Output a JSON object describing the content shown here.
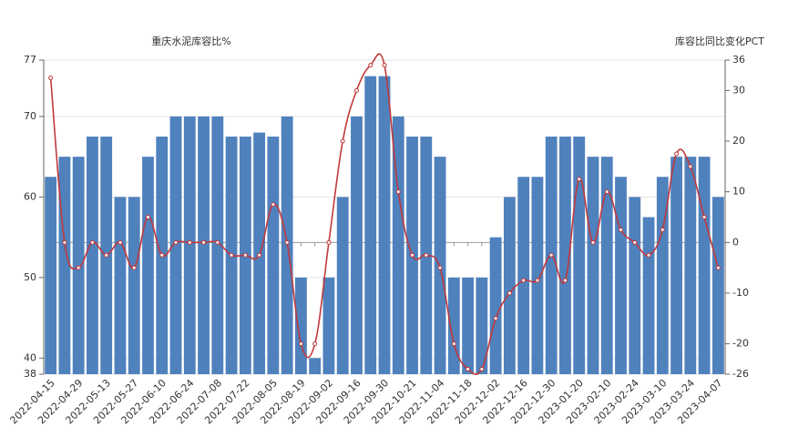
{
  "chart_data": {
    "type": "bar-line",
    "title_left": "重庆水泥库容比%",
    "title_right": "库容比同比变化PCT",
    "categories": [
      "2022-04-15",
      null,
      "2022-04-29",
      null,
      "2022-05-13",
      null,
      "2022-05-27",
      null,
      "2022-06-10",
      null,
      "2022-06-24",
      null,
      "2022-07-08",
      null,
      "2022-07-22",
      null,
      "2022-08-05",
      null,
      "2022-08-19",
      null,
      "2022-09-02",
      null,
      "2022-09-16",
      null,
      "2022-09-30",
      null,
      "2022-10-21",
      null,
      "2022-11-04",
      null,
      "2022-11-18",
      null,
      "2022-12-02",
      null,
      "2022-12-16",
      null,
      "2022-12-30",
      null,
      "2023-01-20",
      null,
      "2023-02-10",
      null,
      "2023-02-24",
      null,
      "2023-03-10",
      null,
      "2023-03-24",
      null,
      "2023-04-07"
    ],
    "series": [
      {
        "type": "bar",
        "color": "#4f81bd",
        "values": [
          62.5,
          65,
          65,
          67.5,
          67.5,
          60,
          60,
          65,
          67.5,
          70,
          70,
          70,
          70,
          67.5,
          67.5,
          68,
          67.5,
          70,
          50,
          40,
          50,
          60,
          70,
          75,
          75,
          70,
          67.5,
          67.5,
          65,
          50,
          50,
          50,
          55,
          60,
          62.5,
          62.5,
          67.5,
          67.5,
          67.5,
          65,
          65,
          62.5,
          60,
          57.5,
          62.5,
          65,
          65,
          65,
          60
        ]
      },
      {
        "type": "line",
        "axis": "y2",
        "color": "#c0393b",
        "values": [
          32.5,
          0,
          -5,
          0,
          -2.5,
          0,
          -5,
          5,
          -2.5,
          0,
          0,
          0,
          0,
          -2.5,
          -2.5,
          -2.5,
          7.5,
          0,
          -20,
          -20,
          0,
          20,
          30,
          35,
          35,
          10,
          -2.5,
          -2.5,
          -5,
          -20,
          -25,
          -25,
          -15,
          -10,
          -7.5,
          -7.5,
          -2.5,
          -7.5,
          12.5,
          0,
          10,
          2.5,
          0,
          -2.5,
          2.5,
          17.5,
          15,
          5,
          -5
        ]
      }
    ],
    "ylim": [
      38,
      77
    ],
    "yticks": [
      38,
      40,
      50,
      60,
      70,
      77
    ],
    "y2lim": [
      -26,
      36
    ],
    "y2ticks": [
      -26,
      -20,
      -10,
      0,
      10,
      20,
      30,
      36
    ],
    "grid": true
  }
}
